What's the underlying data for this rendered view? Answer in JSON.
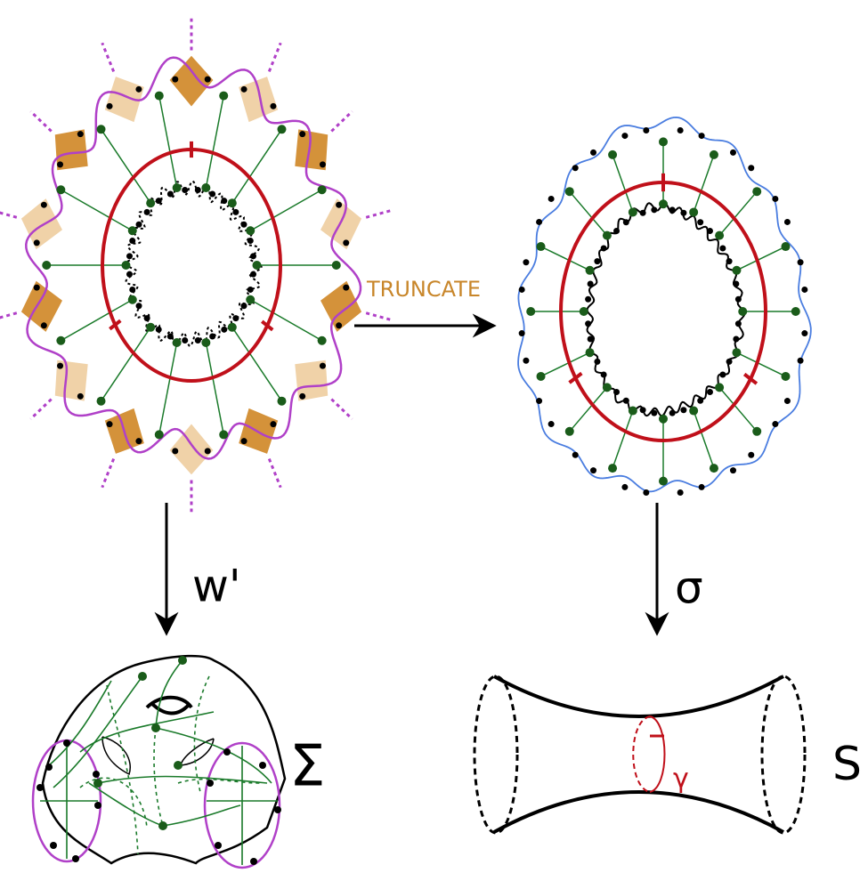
{
  "labels": {
    "truncate": "TRUNCATE",
    "left_map": "w'",
    "right_map": "σ",
    "sigma": "Σ",
    "surface": "S",
    "gamma": "γ"
  }
}
